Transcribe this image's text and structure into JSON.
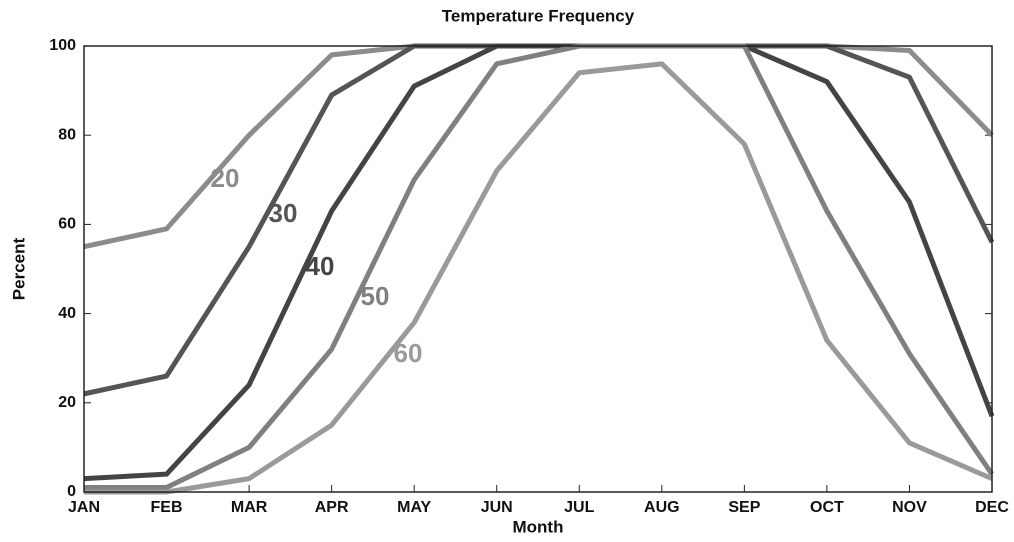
{
  "chart_data": {
    "type": "line",
    "title": "Temperature Frequency",
    "x_label": "Month",
    "y_label": "Percent",
    "categories": [
      "JAN",
      "FEB",
      "MAR",
      "APR",
      "MAY",
      "JUN",
      "JUL",
      "AUG",
      "SEP",
      "OCT",
      "NOV",
      "DEC"
    ],
    "ylim": [
      0,
      100
    ],
    "yticks": [
      0,
      20,
      40,
      60,
      80,
      100
    ],
    "series": [
      {
        "name": "20",
        "color": "#8c8c8c",
        "values": [
          55,
          59,
          80,
          98,
          100,
          100,
          100,
          100,
          100,
          100,
          99,
          80
        ]
      },
      {
        "name": "30",
        "color": "#555555",
        "values": [
          22,
          26,
          55,
          89,
          100,
          100,
          100,
          100,
          100,
          100,
          93,
          56
        ]
      },
      {
        "name": "40",
        "color": "#444444",
        "values": [
          3,
          4,
          24,
          63,
          91,
          100,
          100,
          100,
          100,
          92,
          65,
          17
        ]
      },
      {
        "name": "50",
        "color": "#808080",
        "values": [
          1,
          1,
          10,
          32,
          70,
          96,
          100,
          100,
          100,
          63,
          31,
          4
        ]
      },
      {
        "name": "60",
        "color": "#9a9a9a",
        "values": [
          0,
          0,
          3,
          15,
          38,
          72,
          94,
          96,
          78,
          34,
          11,
          3
        ]
      }
    ]
  }
}
